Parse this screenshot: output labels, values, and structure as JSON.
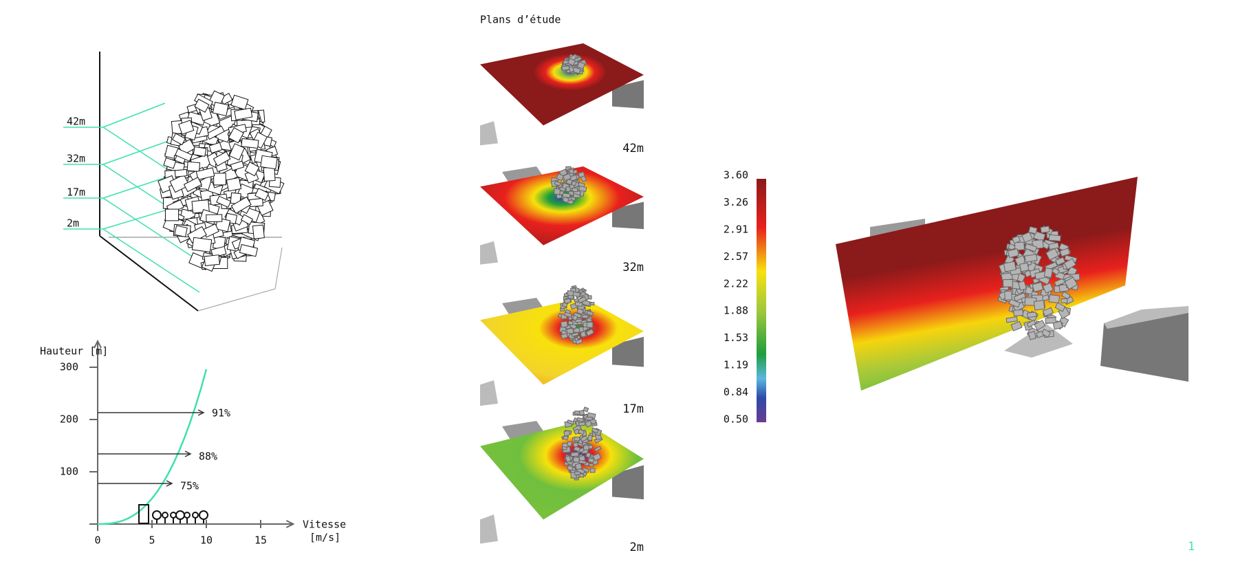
{
  "tower_diagram": {
    "levels": [
      "42m",
      "32m",
      "17m",
      "2m"
    ]
  },
  "profile_chart": {
    "y_label": "Hauteur [m]",
    "x_label": [
      "Vitesse",
      "[m/s]"
    ],
    "xlim": [
      0,
      18
    ],
    "ylim": [
      0,
      350
    ],
    "xticks": [
      0,
      5,
      10,
      15
    ],
    "yticks": [
      100,
      200,
      300
    ],
    "arrow_labels": [
      "91%",
      "88%",
      "75%"
    ]
  },
  "study_planes": {
    "title": "Plans d’étude",
    "labels": [
      "42m",
      "32m",
      "17m",
      "2m"
    ]
  },
  "color_scale": {
    "labels": [
      "3.60",
      "3.26",
      "2.91",
      "2.57",
      "2.22",
      "1.88",
      "1.53",
      "1.19",
      "0.84",
      "0.50"
    ]
  },
  "page_number": "1"
}
